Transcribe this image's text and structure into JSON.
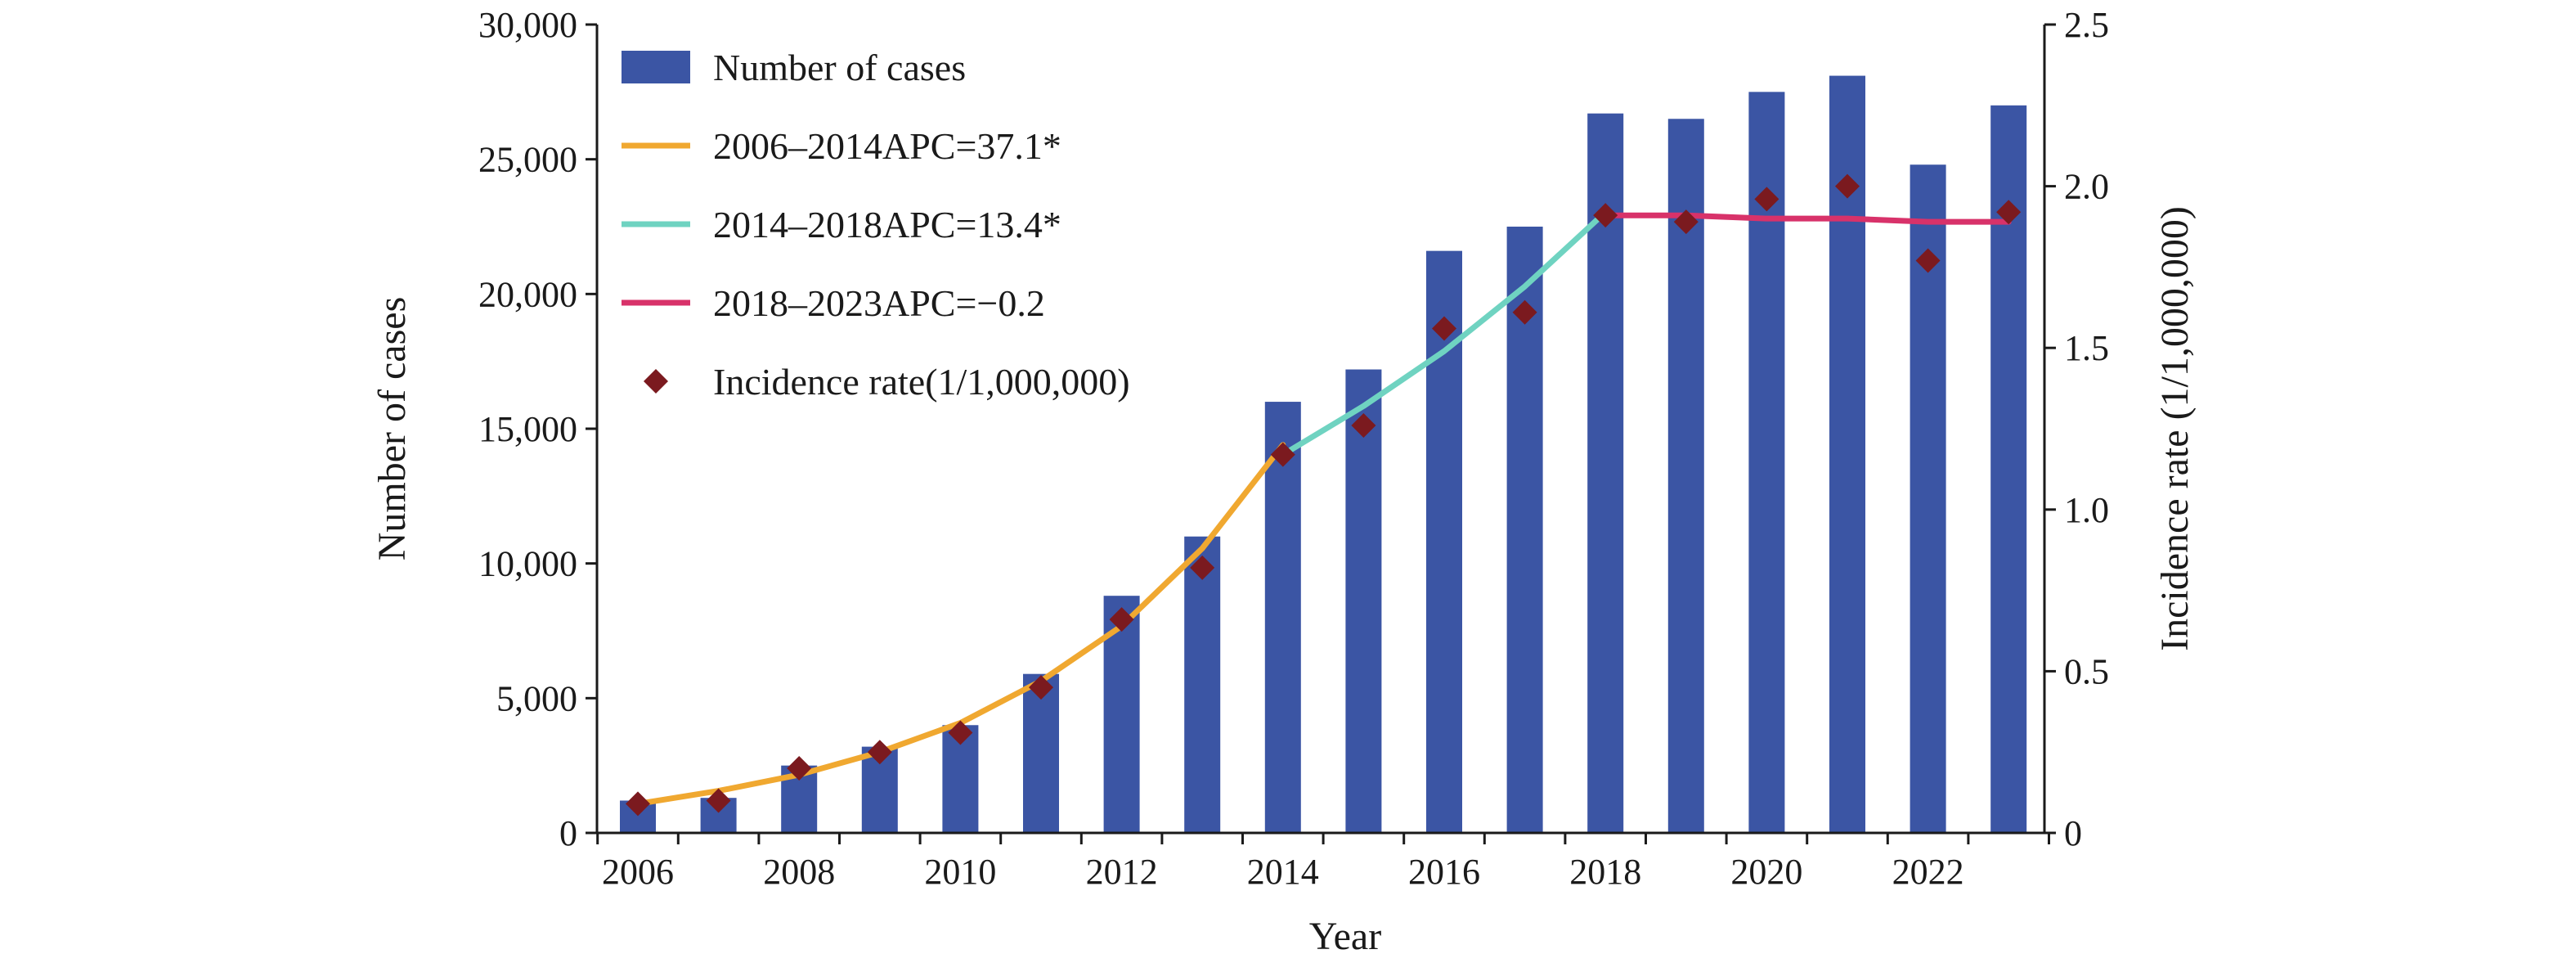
{
  "chart_data": {
    "type": "bar",
    "xlabel": "Year",
    "ylabel": "Number of cases",
    "y2label": "Incidence rate (1/1,000,000)",
    "ylim": [
      0,
      30000
    ],
    "y2lim": [
      0,
      2.5
    ],
    "x_ticks": [
      "2006",
      "2008",
      "2010",
      "2012",
      "2014",
      "2016",
      "2018",
      "2020",
      "2022"
    ],
    "y_ticks": [
      "0",
      "5,000",
      "10,000",
      "15,000",
      "20,000",
      "25,000",
      "30,000"
    ],
    "y2_ticks": [
      "0",
      "0.5",
      "1.0",
      "1.5",
      "2.0",
      "2.5"
    ],
    "grid": false,
    "legend_position": "top-left",
    "categories": [
      2006,
      2007,
      2008,
      2009,
      2010,
      2011,
      2012,
      2013,
      2014,
      2015,
      2016,
      2017,
      2018,
      2019,
      2020,
      2021,
      2022,
      2023
    ],
    "series": [
      {
        "name": "Number of cases",
        "type": "bar",
        "axis": "left",
        "color": "#3b55a4",
        "values": [
          1200,
          1300,
          2500,
          3200,
          4000,
          5900,
          8800,
          11000,
          16000,
          17200,
          21600,
          22500,
          26700,
          26500,
          27500,
          28100,
          24800,
          27000
        ]
      },
      {
        "name": "Incidence rate(1/1,000,000)",
        "type": "scatter",
        "axis": "right",
        "marker": "diamond",
        "color": "#7b1a1f",
        "values": [
          0.09,
          0.1,
          0.2,
          0.25,
          0.31,
          0.45,
          0.66,
          0.82,
          1.17,
          1.26,
          1.56,
          1.61,
          1.91,
          1.89,
          1.96,
          2.0,
          1.77,
          1.92
        ]
      },
      {
        "name": "2006–2014APC=37.1*",
        "type": "line",
        "axis": "right",
        "color": "#f0a830",
        "x": [
          2006,
          2007,
          2008,
          2009,
          2010,
          2011,
          2012,
          2013,
          2014
        ],
        "values": [
          0.09,
          0.13,
          0.18,
          0.25,
          0.34,
          0.47,
          0.64,
          0.88,
          1.2
        ]
      },
      {
        "name": "2014–2018APC=13.4*",
        "type": "line",
        "axis": "right",
        "color": "#6fd3c1",
        "x": [
          2014,
          2015,
          2016,
          2017,
          2018
        ],
        "values": [
          1.17,
          1.32,
          1.49,
          1.69,
          1.92
        ]
      },
      {
        "name": "2018–2023APC=−0.2",
        "type": "line",
        "axis": "right",
        "color": "#d8326a",
        "x": [
          2018,
          2019,
          2020,
          2021,
          2022,
          2023
        ],
        "values": [
          1.91,
          1.91,
          1.9,
          1.9,
          1.89,
          1.89
        ]
      }
    ],
    "legend": [
      {
        "label": "Number of cases",
        "kind": "bar",
        "color": "#3b55a4"
      },
      {
        "label": "2006–2014APC=37.1*",
        "kind": "line",
        "color": "#f0a830"
      },
      {
        "label": "2014–2018APC=13.4*",
        "kind": "line",
        "color": "#6fd3c1"
      },
      {
        "label": "2018–2023APC=−0.2",
        "kind": "line",
        "color": "#d8326a"
      },
      {
        "label": "Incidence rate(1/1,000,000)",
        "kind": "diamond",
        "color": "#7b1a1f"
      }
    ]
  }
}
